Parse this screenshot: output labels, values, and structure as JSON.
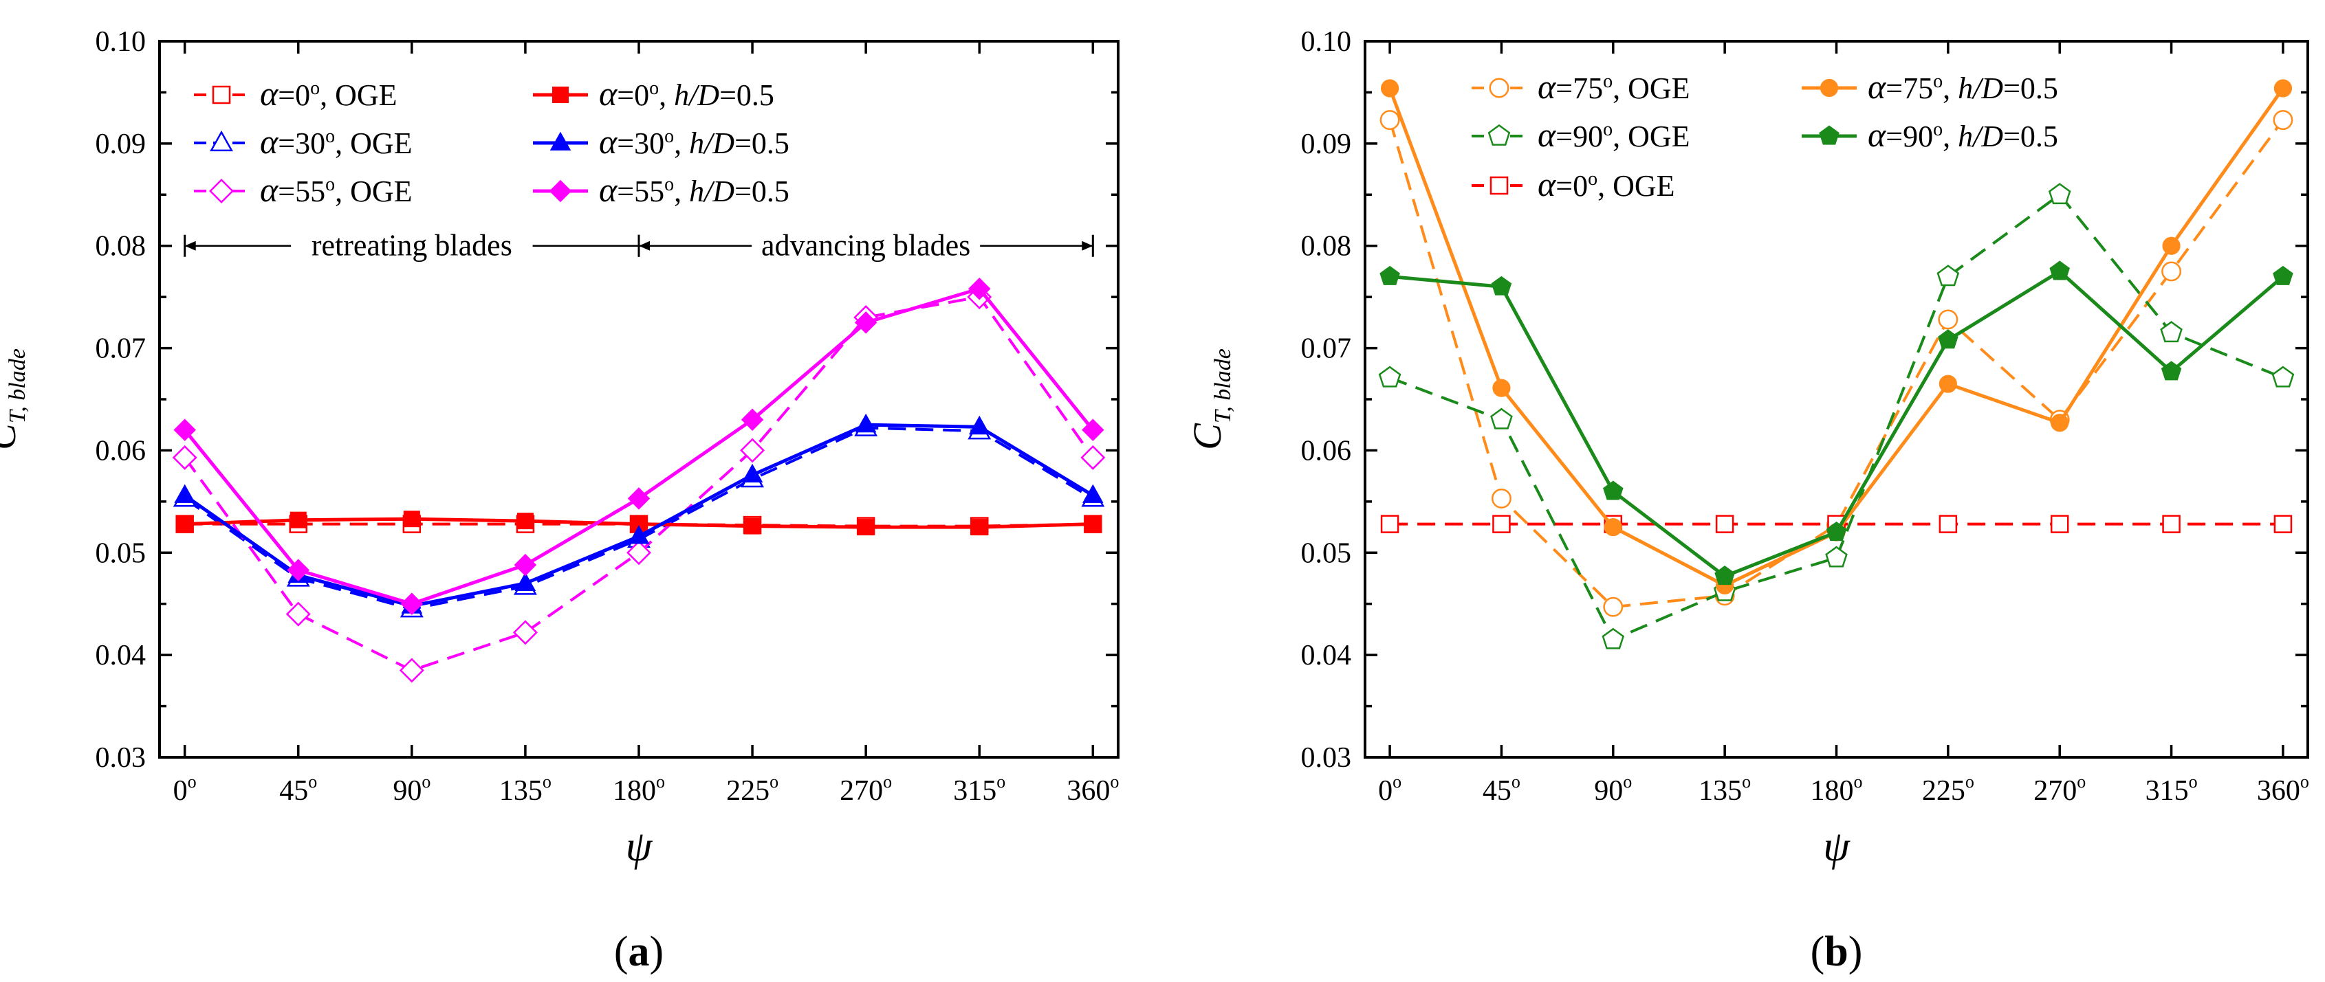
{
  "chart_data": [
    {
      "type": "line",
      "panel_label": "(a)",
      "panel_letter": "a",
      "xlabel": "ψ",
      "ylabel": "C",
      "ylabel_sub": "T, blade",
      "x": [
        0,
        45,
        90,
        135,
        180,
        225,
        270,
        315,
        360
      ],
      "xtick_labels": [
        "0",
        "45",
        "90",
        "135",
        "180",
        "225",
        "270",
        "315",
        "360"
      ],
      "xtick_unit": "o",
      "xlim": [
        -10,
        370
      ],
      "ylim": [
        0.03,
        0.1
      ],
      "yticks": [
        0.03,
        0.04,
        0.05,
        0.06,
        0.07,
        0.08,
        0.09,
        0.1
      ],
      "ytick_labels": [
        "0.03",
        "0.04",
        "0.05",
        "0.06",
        "0.07",
        "0.08",
        "0.09",
        "0.10"
      ],
      "annotations": [
        {
          "text": "retreating blades",
          "from": 0,
          "to": 180,
          "y": 0.08
        },
        {
          "text": "advancing blades",
          "from": 180,
          "to": 360,
          "y": 0.08
        }
      ],
      "series": [
        {
          "name": "α=0°, OGE",
          "alpha": "α=0",
          "cond": ", OGE",
          "color": "#ff0000",
          "dash": true,
          "marker": "square",
          "filled": false,
          "values": [
            0.0528,
            0.0528,
            0.0528,
            0.0528,
            0.0528,
            0.0527,
            0.0526,
            0.0526,
            0.0528
          ]
        },
        {
          "name": "α=30°, OGE",
          "alpha": "α=30",
          "cond": ", OGE",
          "color": "#0000ff",
          "dash": true,
          "marker": "triangle",
          "filled": false,
          "values": [
            0.0553,
            0.0475,
            0.0445,
            0.0467,
            0.0513,
            0.0572,
            0.0622,
            0.0619,
            0.0553
          ]
        },
        {
          "name": "α=55°, OGE",
          "alpha": "α=55",
          "cond": ", OGE",
          "color": "#ff00ff",
          "dash": true,
          "marker": "diamond",
          "filled": false,
          "values": [
            0.0593,
            0.044,
            0.0385,
            0.0422,
            0.05,
            0.06,
            0.073,
            0.075,
            0.0593
          ]
        },
        {
          "name": "α=0°, h/D=0.5",
          "alpha": "α=0",
          "cond": ", h/D=0.5",
          "color": "#ff0000",
          "dash": false,
          "marker": "square",
          "filled": true,
          "values": [
            0.0528,
            0.0532,
            0.0533,
            0.0531,
            0.0528,
            0.0526,
            0.0525,
            0.0525,
            0.0528
          ]
        },
        {
          "name": "α=30°, h/D=0.5",
          "alpha": "α=30",
          "cond": ", h/D=0.5",
          "color": "#0000ff",
          "dash": false,
          "marker": "triangle",
          "filled": true,
          "values": [
            0.0556,
            0.0478,
            0.0448,
            0.047,
            0.0516,
            0.0576,
            0.0625,
            0.0623,
            0.0556
          ]
        },
        {
          "name": "α=55°, h/D=0.5",
          "alpha": "α=55",
          "cond": ", h/D=0.5",
          "color": "#ff00ff",
          "dash": false,
          "marker": "diamond",
          "filled": true,
          "values": [
            0.062,
            0.0483,
            0.045,
            0.0488,
            0.0553,
            0.063,
            0.0725,
            0.0758,
            0.062
          ]
        }
      ]
    },
    {
      "type": "line",
      "panel_label": "(b)",
      "panel_letter": "b",
      "xlabel": "ψ",
      "ylabel": "C",
      "ylabel_sub": "T, blade",
      "x": [
        0,
        45,
        90,
        135,
        180,
        225,
        270,
        315,
        360
      ],
      "xtick_labels": [
        "0",
        "45",
        "90",
        "135",
        "180",
        "225",
        "270",
        "315",
        "360"
      ],
      "xtick_unit": "o",
      "xlim": [
        -10,
        370
      ],
      "ylim": [
        0.03,
        0.1
      ],
      "yticks": [
        0.03,
        0.04,
        0.05,
        0.06,
        0.07,
        0.08,
        0.09,
        0.1
      ],
      "ytick_labels": [
        "0.03",
        "0.04",
        "0.05",
        "0.06",
        "0.07",
        "0.08",
        "0.09",
        "0.10"
      ],
      "annotations": [],
      "series": [
        {
          "name": "α=75°, OGE",
          "alpha": "α=75",
          "cond": ", OGE",
          "color": "#ff8c1a",
          "dash": true,
          "marker": "circle",
          "filled": false,
          "values": [
            0.0923,
            0.0553,
            0.0447,
            0.0458,
            0.0527,
            0.0728,
            0.063,
            0.0775,
            0.0923
          ]
        },
        {
          "name": "α=90°, OGE",
          "alpha": "α=90",
          "cond": ", OGE",
          "color": "#1a8a1a",
          "dash": true,
          "marker": "pentagon",
          "filled": false,
          "values": [
            0.0671,
            0.063,
            0.0415,
            0.0462,
            0.0495,
            0.077,
            0.085,
            0.0715,
            0.0671
          ]
        },
        {
          "name": "α=0°, OGE",
          "alpha": "α=0",
          "cond": ", OGE",
          "color": "#ff0000",
          "dash": true,
          "marker": "square",
          "filled": false,
          "values": [
            0.0528,
            0.0528,
            0.0528,
            0.0528,
            0.0528,
            0.0528,
            0.0528,
            0.0528,
            0.0528
          ]
        },
        {
          "name": "α=75°, h/D=0.5",
          "alpha": "α=75",
          "cond": ", h/D=0.5",
          "color": "#ff8c1a",
          "dash": false,
          "marker": "circle",
          "filled": true,
          "values": [
            0.0954,
            0.0661,
            0.0525,
            0.0468,
            0.052,
            0.0665,
            0.0627,
            0.08,
            0.0954
          ]
        },
        {
          "name": "α=90°, h/D=0.5",
          "alpha": "α=90",
          "cond": ", h/D=0.5",
          "color": "#1a8a1a",
          "dash": false,
          "marker": "pentagon",
          "filled": true,
          "values": [
            0.077,
            0.076,
            0.056,
            0.0477,
            0.052,
            0.0708,
            0.0775,
            0.0677,
            0.077
          ]
        }
      ]
    }
  ]
}
